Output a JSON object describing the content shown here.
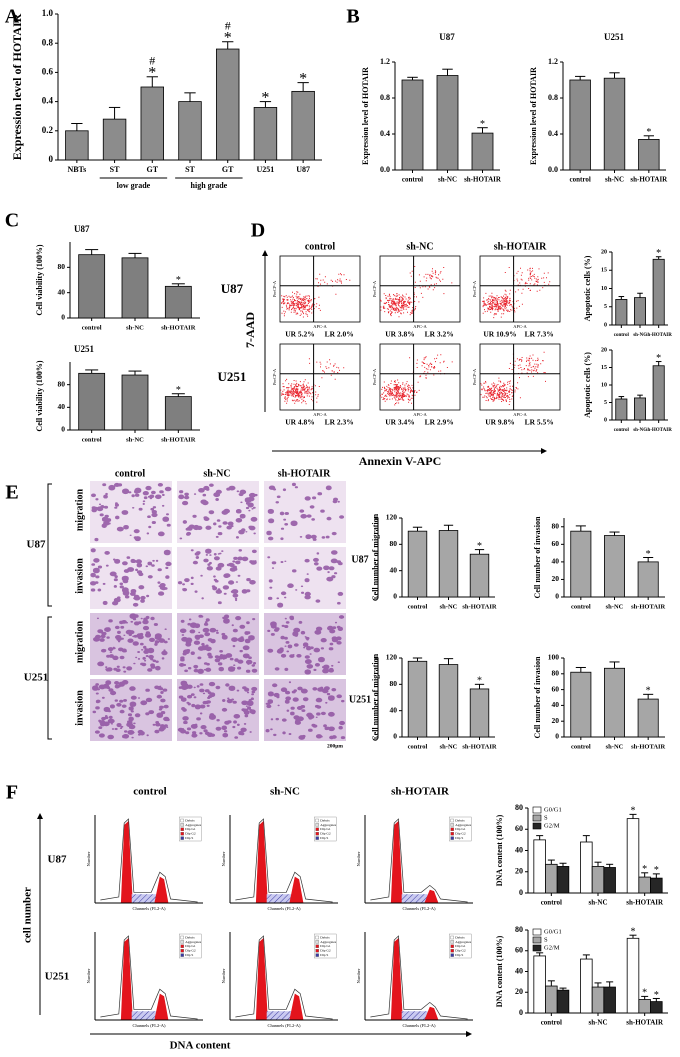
{
  "figure": {
    "panels": [
      "A",
      "B",
      "C",
      "D",
      "E",
      "F"
    ],
    "flow": {
      "columns": [
        "control",
        "sh-NC",
        "sh-HOTAIR"
      ],
      "rows": [
        "U87",
        "U251"
      ],
      "quadrants": [
        [
          [
            "UR 5.2%",
            "LR 2.0%"
          ],
          [
            "UR 3.8%",
            "LR 3.2%"
          ],
          [
            "UR 10.9%",
            "LR 7.3%"
          ]
        ],
        [
          [
            "UR 4.8%",
            "LR 2.3%"
          ],
          [
            "UR 3.4%",
            "LR 2.9%"
          ],
          [
            "UR 9.8%",
            "LR 5.5%"
          ]
        ]
      ],
      "y_axis": "7-AAD",
      "x_axis": "Annexin V-APC",
      "plot_ylabel": "PerCP-A",
      "plot_xlabel": "APC-A"
    },
    "staining": {
      "columns": [
        "control",
        "sh-NC",
        "sh-HOTAIR"
      ],
      "rows": [
        "U87",
        "U251"
      ],
      "assays": [
        "migration",
        "invasion"
      ],
      "scale": "200μm"
    },
    "cell_cycle": {
      "columns": [
        "control",
        "sh-NC",
        "sh-HOTAIR"
      ],
      "rows": [
        "U87",
        "U251"
      ],
      "y_axis": "cell number",
      "x_axis": "DNA content",
      "plot_ylabel": "Number",
      "plot_xlabel": "Channels (FL2-A)",
      "legend": [
        "Debris",
        "Aggregates",
        "Dip G1",
        "Dip G2",
        "Dip S"
      ]
    }
  },
  "chart_data": [
    {
      "type": "bar",
      "ylabel": "Expression level of HOTAIR",
      "categories": [
        "NBTs",
        "ST",
        "GT",
        "ST",
        "GT",
        "U251",
        "U87"
      ],
      "values": [
        0.2,
        0.28,
        0.5,
        0.4,
        0.76,
        0.36,
        0.47
      ],
      "errors": [
        0.05,
        0.08,
        0.07,
        0.06,
        0.05,
        0.04,
        0.06
      ],
      "significance": [
        null,
        null,
        "*",
        null,
        "*",
        "*",
        "*"
      ],
      "significance_hash": [
        null,
        null,
        "#",
        null,
        "#",
        null,
        null
      ],
      "group_labels": [
        "low grade",
        "high grade"
      ],
      "color": "#8c8c8c",
      "ylim": [
        0,
        1
      ],
      "yticks": [
        0,
        0.2,
        0.4,
        0.6,
        0.8,
        {
          "value": 1,
          "label": "1.0"
        }
      ]
    },
    {
      "type": "bar",
      "title": "U87",
      "ylabel": "Expression level of HOTAIR",
      "categories": [
        "control",
        "sh-NC",
        "sh-HOTAIR"
      ],
      "values": [
        1.0,
        1.05,
        0.41
      ],
      "errors": [
        0.03,
        0.07,
        0.06
      ],
      "significance": [
        null,
        null,
        "*"
      ],
      "color": "#8c8c8c",
      "ylim": [
        0,
        1.2
      ],
      "yticks": [
        {
          "value": 0,
          "label": "0.0"
        },
        0.4,
        0.8,
        1.2
      ]
    },
    {
      "type": "bar",
      "title": "U251",
      "ylabel": "Expression level of HOTAIR",
      "categories": [
        "control",
        "sh-NC",
        "sh-HOTAIR"
      ],
      "values": [
        1.0,
        1.02,
        0.34
      ],
      "errors": [
        0.04,
        0.06,
        0.04
      ],
      "significance": [
        null,
        null,
        "*"
      ],
      "color": "#8c8c8c",
      "ylim": [
        0,
        1.2
      ],
      "yticks": [
        {
          "value": 0,
          "label": "0.0"
        },
        0.4,
        0.8,
        1.2
      ]
    },
    {
      "type": "bar",
      "title": "U87",
      "ylabel": "Cell viability (100%)",
      "categories": [
        "control",
        "sh-NC",
        "sh-HOTAIR"
      ],
      "values": [
        100,
        95,
        50
      ],
      "errors": [
        8,
        7,
        4
      ],
      "significance": [
        null,
        null,
        "*"
      ],
      "color": "#7f7f7f",
      "ylim": [
        0,
        120
      ],
      "yticks": [
        0,
        40,
        80
      ]
    },
    {
      "type": "bar",
      "title": "U251",
      "ylabel": "Cell viability (100%)",
      "categories": [
        "control",
        "sh-NC",
        "sh-HOTAIR"
      ],
      "values": [
        100,
        97,
        59
      ],
      "errors": [
        6,
        7,
        5
      ],
      "significance": [
        null,
        null,
        "*"
      ],
      "color": "#7f7f7f",
      "ylim": [
        0,
        120
      ],
      "yticks": [
        0,
        40,
        80
      ]
    },
    {
      "type": "bar",
      "ylabel": "Apoptotic cells (%)",
      "categories": [
        "control",
        "sh-NC",
        "sh-HOTAIR"
      ],
      "values": [
        7,
        7.5,
        18
      ],
      "errors": [
        0.8,
        1.2,
        0.7
      ],
      "significance": [
        null,
        null,
        "*"
      ],
      "color": "#8c8c8c",
      "ylim": [
        0,
        20
      ],
      "yticks": [
        0,
        5,
        10,
        15,
        20
      ]
    },
    {
      "type": "bar",
      "ylabel": "Apoptotic cells (%)",
      "categories": [
        "control",
        "sh-NC",
        "sh-HOTAIR"
      ],
      "values": [
        6,
        6.3,
        15.5
      ],
      "errors": [
        0.7,
        0.8,
        1.2
      ],
      "significance": [
        null,
        null,
        "*"
      ],
      "color": "#8c8c8c",
      "ylim": [
        0,
        20
      ],
      "yticks": [
        0,
        5,
        10,
        15,
        20
      ]
    },
    {
      "type": "bar",
      "ylabel": "Cell number of migration",
      "categories": [
        "control",
        "sh-NC",
        "sh-HOTAIR"
      ],
      "values": [
        100,
        101,
        65
      ],
      "errors": [
        6,
        8,
        7
      ],
      "significance": [
        null,
        null,
        "*"
      ],
      "color": "#a6a6a6",
      "ylim": [
        0,
        120
      ],
      "yticks": [
        0,
        40,
        80,
        120
      ]
    },
    {
      "type": "bar",
      "ylabel": "Cell number of invasion",
      "categories": [
        "control",
        "sh-NC",
        "sh-HOTAIR"
      ],
      "values": [
        75,
        70,
        40
      ],
      "errors": [
        6,
        4,
        5
      ],
      "significance": [
        null,
        null,
        "*"
      ],
      "color": "#a6a6a6",
      "ylim": [
        0,
        90
      ],
      "yticks": [
        0,
        20,
        40,
        60,
        80
      ]
    },
    {
      "type": "bar",
      "ylabel": "Cell number of migration",
      "categories": [
        "control",
        "sh-NC",
        "sh-HOTAIR"
      ],
      "values": [
        115,
        110,
        73
      ],
      "errors": [
        5,
        9,
        7
      ],
      "significance": [
        null,
        null,
        "*"
      ],
      "color": "#a6a6a6",
      "ylim": [
        0,
        120
      ],
      "yticks": [
        0,
        40,
        80,
        120
      ]
    },
    {
      "type": "bar",
      "ylabel": "Cell number of invasion",
      "categories": [
        "control",
        "sh-NC",
        "sh-HOTAIR"
      ],
      "values": [
        82,
        87,
        48
      ],
      "errors": [
        6,
        8,
        6
      ],
      "significance": [
        null,
        null,
        "*"
      ],
      "color": "#a6a6a6",
      "ylim": [
        0,
        100
      ],
      "yticks": [
        0,
        20,
        40,
        60,
        80,
        100
      ]
    },
    {
      "type": "grouped_bar",
      "ylabel": "DNA content (100%)",
      "legend": "upper left",
      "categories": [
        "control",
        "sh-NC",
        "sh-HOTAIR"
      ],
      "series": [
        {
          "name": "G0/G1",
          "color": "#ffffff",
          "values": [
            50,
            48,
            70
          ],
          "errors": [
            4,
            6,
            4
          ],
          "significance": [
            null,
            null,
            "*"
          ]
        },
        {
          "name": "S",
          "color": "#a6a6a6",
          "values": [
            27,
            25,
            15
          ],
          "errors": [
            4,
            4,
            4
          ],
          "significance": [
            null,
            null,
            "*"
          ]
        },
        {
          "name": "G2/M",
          "color": "#262626",
          "values": [
            25,
            24,
            14
          ],
          "errors": [
            3,
            3,
            4
          ],
          "significance": [
            null,
            null,
            "*"
          ]
        }
      ],
      "ylim": [
        0,
        80
      ],
      "yticks": [
        0,
        20,
        40,
        60,
        80
      ]
    },
    {
      "type": "grouped_bar",
      "ylabel": "DNA content (100%)",
      "legend": "upper left",
      "categories": [
        "control",
        "sh-NC",
        "sh-HOTAIR"
      ],
      "series": [
        {
          "name": "G0/G1",
          "color": "#ffffff",
          "values": [
            55,
            52,
            72
          ],
          "errors": [
            3,
            4,
            3
          ],
          "significance": [
            null,
            null,
            "*"
          ]
        },
        {
          "name": "S",
          "color": "#a6a6a6",
          "values": [
            26,
            25,
            13
          ],
          "errors": [
            5,
            4,
            3
          ],
          "significance": [
            null,
            null,
            "*"
          ]
        },
        {
          "name": "G2/M",
          "color": "#262626",
          "values": [
            22,
            25,
            11
          ],
          "errors": [
            2,
            5,
            3
          ],
          "significance": [
            null,
            null,
            "*"
          ]
        }
      ],
      "ylim": [
        0,
        80
      ],
      "yticks": [
        0,
        20,
        40,
        60,
        80
      ]
    }
  ]
}
